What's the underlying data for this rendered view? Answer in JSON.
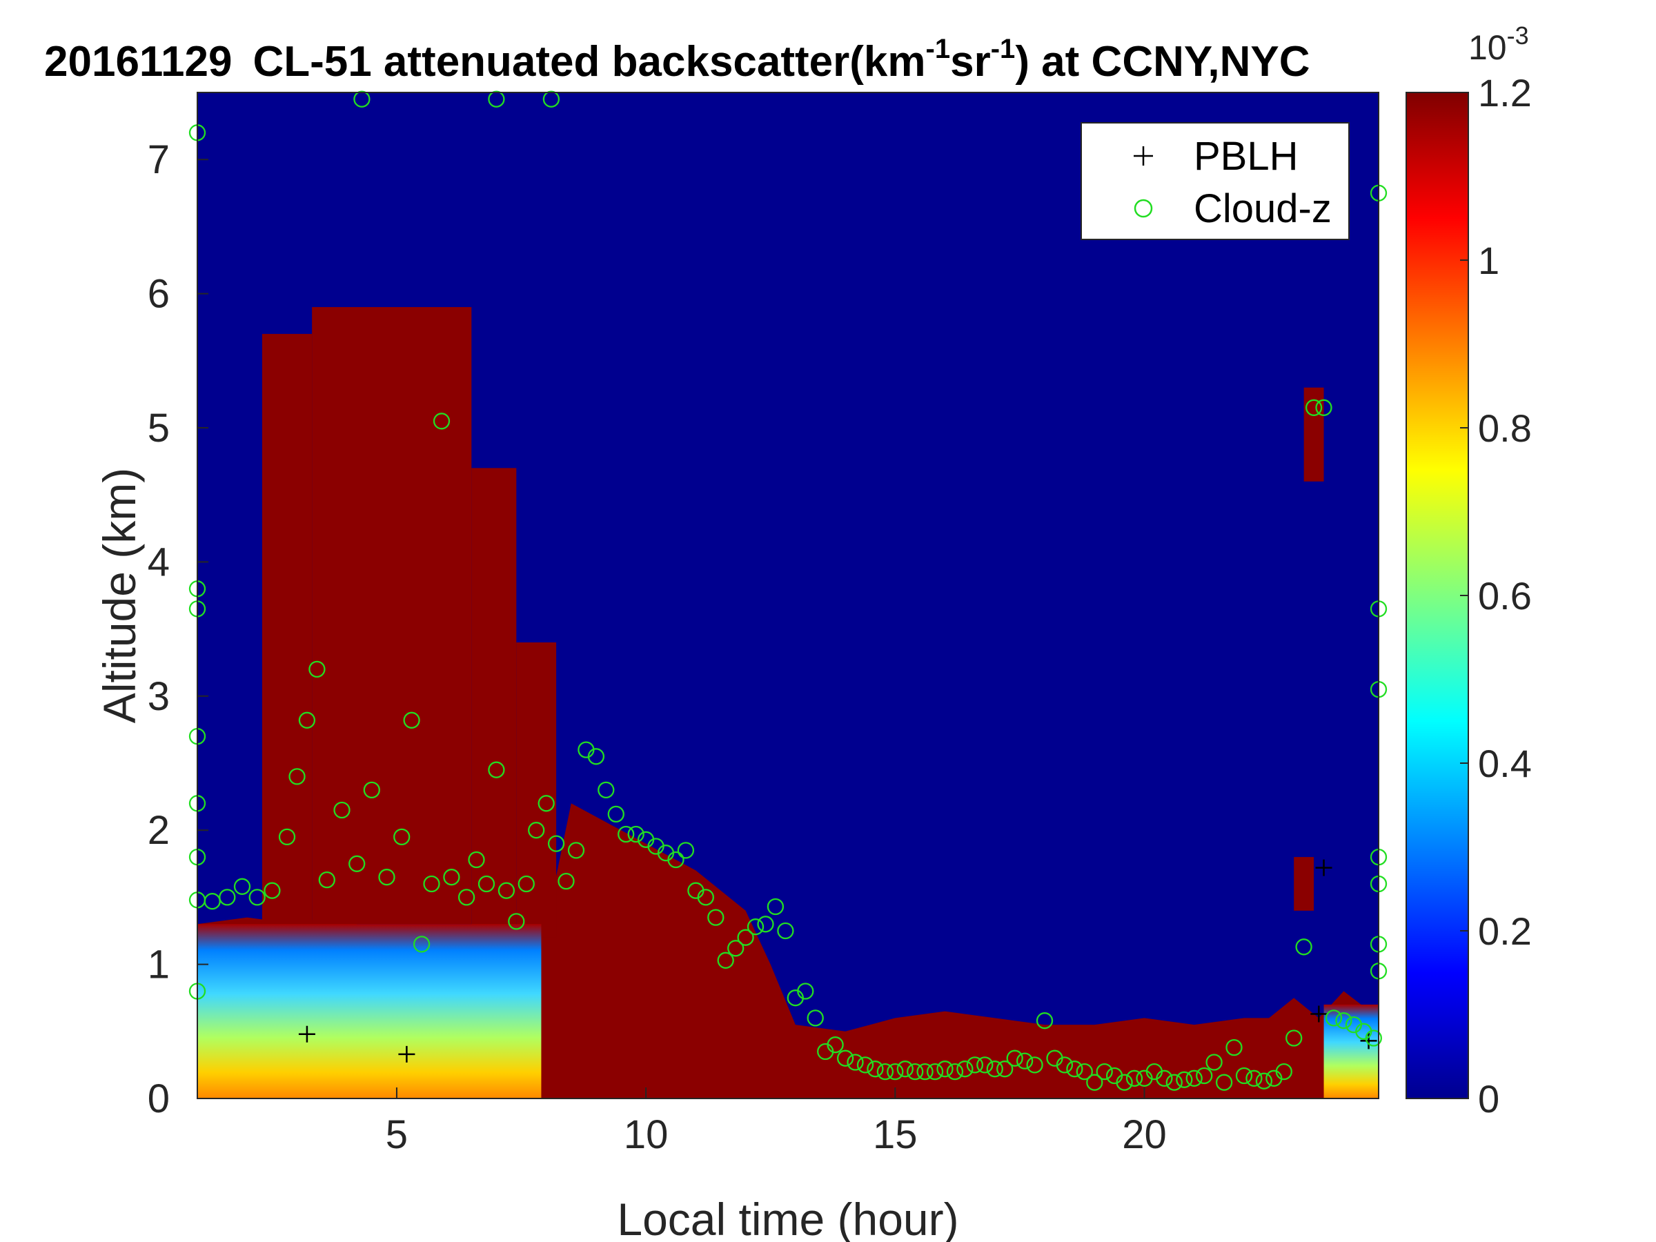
{
  "chart_data": {
    "type": "heatmap",
    "title": {
      "date": "20161129",
      "main": "CL-51 attenuated backscatter(km",
      "sup1": "-1",
      "mid": "sr",
      "sup2": "-1",
      "tail": ") at CCNY,NYC"
    },
    "xlabel": "Local time (hour)",
    "ylabel": "Altitude (km)",
    "xlim": [
      1,
      24.7
    ],
    "ylim": [
      0,
      7.5
    ],
    "xticks": [
      5,
      10,
      15,
      20
    ],
    "yticks": [
      0,
      1,
      2,
      3,
      4,
      5,
      6,
      7
    ],
    "colormap": "jet",
    "colorbar": {
      "min": 0,
      "max": 1.2,
      "ticks": [
        "0",
        "0.2",
        "0.4",
        "0.6",
        "0.8",
        "1",
        "1.2"
      ],
      "exponent_base": "10",
      "exponent": "-3"
    },
    "legend": {
      "position": "top-right",
      "entries": [
        {
          "name": "PBLH",
          "marker": "+",
          "color": "#000000"
        },
        {
          "name": "Cloud-z",
          "marker": "o",
          "color": "#22dd22"
        }
      ]
    },
    "layer_profile": {
      "x": [
        1,
        2,
        3,
        4,
        5,
        6,
        7,
        7.5,
        8,
        8.5,
        9,
        10,
        11,
        12,
        12.5,
        13,
        14,
        15,
        16,
        17,
        18,
        19,
        20,
        21,
        22,
        22.5,
        23,
        23.5,
        24,
        24.7
      ],
      "aerosol_top": [
        1.3,
        1.35,
        1.3,
        1.4,
        0.9,
        1.1,
        1.1,
        1.1,
        1.3,
        2.2,
        2.1,
        1.9,
        1.7,
        1.4,
        1.0,
        0.55,
        0.5,
        0.6,
        0.65,
        0.6,
        0.55,
        0.55,
        0.6,
        0.55,
        0.6,
        0.6,
        0.75,
        0.6,
        0.8,
        0.6
      ]
    },
    "elevated_layers": [
      {
        "x0": 2.3,
        "x1": 3.3,
        "bottom": 1.0,
        "top": 5.7
      },
      {
        "x0": 3.3,
        "x1": 6.5,
        "bottom": 1.3,
        "top": 5.9
      },
      {
        "x0": 6.5,
        "x1": 7.4,
        "bottom": 1.2,
        "top": 4.7
      },
      {
        "x0": 7.4,
        "x1": 8.2,
        "bottom": 1.2,
        "top": 3.4
      },
      {
        "x0": 23.2,
        "x1": 23.6,
        "bottom": 4.6,
        "top": 5.3
      },
      {
        "x0": 23.0,
        "x1": 23.4,
        "bottom": 1.4,
        "top": 1.8
      }
    ],
    "pblh_points": [
      {
        "x": 3.2,
        "y": 0.48
      },
      {
        "x": 5.2,
        "y": 0.33
      },
      {
        "x": 23.6,
        "y": 1.72
      },
      {
        "x": 23.5,
        "y": 0.63
      },
      {
        "x": 24.5,
        "y": 0.43
      }
    ],
    "cloud_z_points": [
      {
        "x": 1.0,
        "y": 1.48
      },
      {
        "x": 1.3,
        "y": 1.47
      },
      {
        "x": 1.6,
        "y": 1.5
      },
      {
        "x": 1.9,
        "y": 1.58
      },
      {
        "x": 2.2,
        "y": 1.5
      },
      {
        "x": 2.5,
        "y": 1.55
      },
      {
        "x": 2.8,
        "y": 1.95
      },
      {
        "x": 3.0,
        "y": 2.4
      },
      {
        "x": 3.2,
        "y": 2.82
      },
      {
        "x": 3.4,
        "y": 3.2
      },
      {
        "x": 3.6,
        "y": 1.63
      },
      {
        "x": 3.9,
        "y": 2.15
      },
      {
        "x": 4.2,
        "y": 1.75
      },
      {
        "x": 4.5,
        "y": 2.3
      },
      {
        "x": 4.8,
        "y": 1.65
      },
      {
        "x": 5.1,
        "y": 1.95
      },
      {
        "x": 5.3,
        "y": 2.82
      },
      {
        "x": 5.5,
        "y": 1.15
      },
      {
        "x": 5.7,
        "y": 1.6
      },
      {
        "x": 5.9,
        "y": 5.05
      },
      {
        "x": 6.1,
        "y": 1.65
      },
      {
        "x": 6.4,
        "y": 1.5
      },
      {
        "x": 6.6,
        "y": 1.78
      },
      {
        "x": 6.8,
        "y": 1.6
      },
      {
        "x": 7.0,
        "y": 2.45
      },
      {
        "x": 7.2,
        "y": 1.55
      },
      {
        "x": 7.4,
        "y": 1.32
      },
      {
        "x": 7.6,
        "y": 1.6
      },
      {
        "x": 7.8,
        "y": 2.0
      },
      {
        "x": 8.0,
        "y": 2.2
      },
      {
        "x": 8.2,
        "y": 1.9
      },
      {
        "x": 8.4,
        "y": 1.62
      },
      {
        "x": 8.6,
        "y": 1.85
      },
      {
        "x": 8.8,
        "y": 2.6
      },
      {
        "x": 9.0,
        "y": 2.55
      },
      {
        "x": 9.2,
        "y": 2.3
      },
      {
        "x": 9.4,
        "y": 2.12
      },
      {
        "x": 9.6,
        "y": 1.97
      },
      {
        "x": 9.8,
        "y": 1.97
      },
      {
        "x": 10.0,
        "y": 1.93
      },
      {
        "x": 10.2,
        "y": 1.88
      },
      {
        "x": 10.4,
        "y": 1.83
      },
      {
        "x": 10.6,
        "y": 1.78
      },
      {
        "x": 10.8,
        "y": 1.85
      },
      {
        "x": 11.0,
        "y": 1.55
      },
      {
        "x": 11.2,
        "y": 1.5
      },
      {
        "x": 11.4,
        "y": 1.35
      },
      {
        "x": 11.6,
        "y": 1.03
      },
      {
        "x": 11.8,
        "y": 1.12
      },
      {
        "x": 12.0,
        "y": 1.2
      },
      {
        "x": 12.2,
        "y": 1.28
      },
      {
        "x": 12.4,
        "y": 1.3
      },
      {
        "x": 12.6,
        "y": 1.43
      },
      {
        "x": 12.8,
        "y": 1.25
      },
      {
        "x": 13.0,
        "y": 0.75
      },
      {
        "x": 13.2,
        "y": 0.8
      },
      {
        "x": 13.4,
        "y": 0.6
      },
      {
        "x": 13.6,
        "y": 0.35
      },
      {
        "x": 13.8,
        "y": 0.4
      },
      {
        "x": 14.0,
        "y": 0.3
      },
      {
        "x": 14.2,
        "y": 0.27
      },
      {
        "x": 14.4,
        "y": 0.25
      },
      {
        "x": 14.6,
        "y": 0.22
      },
      {
        "x": 14.8,
        "y": 0.2
      },
      {
        "x": 15.0,
        "y": 0.2
      },
      {
        "x": 15.2,
        "y": 0.22
      },
      {
        "x": 15.4,
        "y": 0.2
      },
      {
        "x": 15.6,
        "y": 0.2
      },
      {
        "x": 15.8,
        "y": 0.2
      },
      {
        "x": 16.0,
        "y": 0.22
      },
      {
        "x": 16.2,
        "y": 0.2
      },
      {
        "x": 16.4,
        "y": 0.22
      },
      {
        "x": 16.6,
        "y": 0.25
      },
      {
        "x": 16.8,
        "y": 0.25
      },
      {
        "x": 17.0,
        "y": 0.22
      },
      {
        "x": 17.2,
        "y": 0.22
      },
      {
        "x": 17.4,
        "y": 0.3
      },
      {
        "x": 17.6,
        "y": 0.28
      },
      {
        "x": 17.8,
        "y": 0.25
      },
      {
        "x": 18.0,
        "y": 0.58
      },
      {
        "x": 18.2,
        "y": 0.3
      },
      {
        "x": 18.4,
        "y": 0.25
      },
      {
        "x": 18.6,
        "y": 0.22
      },
      {
        "x": 18.8,
        "y": 0.2
      },
      {
        "x": 19.0,
        "y": 0.12
      },
      {
        "x": 19.2,
        "y": 0.2
      },
      {
        "x": 19.4,
        "y": 0.17
      },
      {
        "x": 19.6,
        "y": 0.12
      },
      {
        "x": 19.8,
        "y": 0.15
      },
      {
        "x": 20.0,
        "y": 0.15
      },
      {
        "x": 20.2,
        "y": 0.2
      },
      {
        "x": 20.4,
        "y": 0.15
      },
      {
        "x": 20.6,
        "y": 0.12
      },
      {
        "x": 20.8,
        "y": 0.14
      },
      {
        "x": 21.0,
        "y": 0.15
      },
      {
        "x": 21.2,
        "y": 0.17
      },
      {
        "x": 21.4,
        "y": 0.27
      },
      {
        "x": 21.6,
        "y": 0.12
      },
      {
        "x": 21.8,
        "y": 0.38
      },
      {
        "x": 22.0,
        "y": 0.17
      },
      {
        "x": 22.2,
        "y": 0.15
      },
      {
        "x": 22.4,
        "y": 0.13
      },
      {
        "x": 22.6,
        "y": 0.15
      },
      {
        "x": 22.8,
        "y": 0.2
      },
      {
        "x": 23.0,
        "y": 0.45
      },
      {
        "x": 23.2,
        "y": 1.13
      },
      {
        "x": 23.4,
        "y": 5.15
      },
      {
        "x": 23.6,
        "y": 5.15
      },
      {
        "x": 23.8,
        "y": 0.6
      },
      {
        "x": 24.0,
        "y": 0.58
      },
      {
        "x": 24.2,
        "y": 0.55
      },
      {
        "x": 24.4,
        "y": 0.5
      },
      {
        "x": 24.6,
        "y": 0.45
      },
      {
        "x": 24.7,
        "y": 6.75
      },
      {
        "x": 24.7,
        "y": 3.65
      },
      {
        "x": 24.7,
        "y": 3.05
      },
      {
        "x": 24.7,
        "y": 1.8
      },
      {
        "x": 24.7,
        "y": 1.6
      },
      {
        "x": 24.7,
        "y": 1.15
      },
      {
        "x": 24.7,
        "y": 0.95
      },
      {
        "x": 1.0,
        "y": 7.2
      },
      {
        "x": 1.0,
        "y": 3.8
      },
      {
        "x": 1.0,
        "y": 3.65
      },
      {
        "x": 1.0,
        "y": 2.7
      },
      {
        "x": 1.0,
        "y": 2.2
      },
      {
        "x": 1.0,
        "y": 1.8
      },
      {
        "x": 1.0,
        "y": 0.8
      },
      {
        "x": 4.3,
        "y": 7.45
      },
      {
        "x": 7.0,
        "y": 7.45
      },
      {
        "x": 8.1,
        "y": 7.45
      }
    ]
  }
}
